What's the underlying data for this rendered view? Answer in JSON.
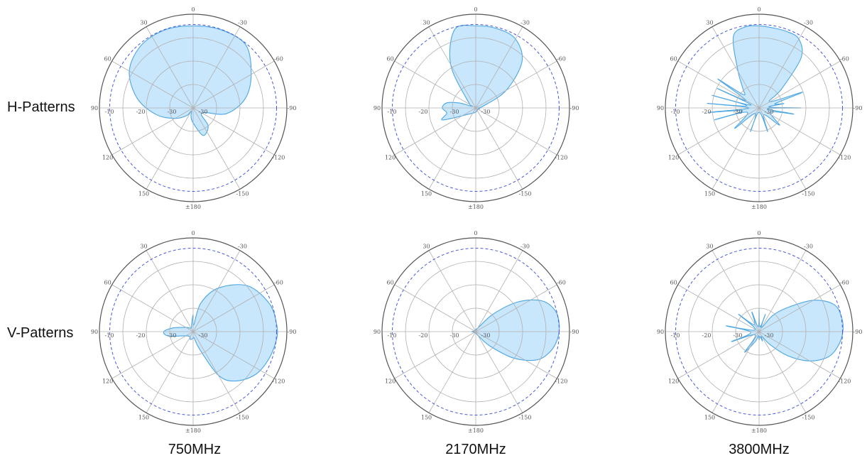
{
  "row_labels": {
    "h": "H-Patterns",
    "v": "V-Patterns"
  },
  "column_labels": [
    "750MHz",
    "2170MHz",
    "3800MHz"
  ],
  "colors": {
    "lobe_fill": "#bfe3fb",
    "lobe_stroke": "#4aa6e3",
    "grid": "#b0b0b0",
    "outer_ring": "#555555",
    "reference_ring": "#4a5ad8"
  },
  "chart_data": [
    {
      "type": "polar",
      "id": "h-750",
      "row": "H-Patterns",
      "column": "750MHz",
      "angular_ticks": [
        "0",
        "-30",
        "-60",
        "-90",
        "-120",
        "-150",
        "±180",
        "150",
        "120",
        "90",
        "60",
        "30"
      ],
      "radial_ticks": [
        "-10",
        "-20",
        "-30"
      ],
      "reference_level": 1.05,
      "pattern": {
        "angles": [
          0,
          20,
          40,
          60,
          80,
          100,
          120,
          140,
          160,
          180,
          195,
          210,
          220,
          240,
          260,
          280,
          300,
          320,
          340
        ],
        "radii": [
          0.98,
          0.99,
          0.98,
          0.8,
          0.63,
          0.4,
          0.12,
          0.28,
          0.35,
          0.18,
          0.1,
          0.04,
          0.12,
          0.25,
          0.45,
          0.68,
          0.88,
          0.97,
          0.99
        ]
      }
    },
    {
      "type": "polar",
      "id": "h-2170",
      "row": "H-Patterns",
      "column": "2170MHz",
      "angular_ticks": [
        "0",
        "-30",
        "-60",
        "-90",
        "-120",
        "-150",
        "±180",
        "150",
        "120",
        "90",
        "60",
        "30"
      ],
      "radial_ticks": [
        "-10",
        "-20",
        "-30"
      ],
      "reference_level": 1.05,
      "pattern": {
        "angles": [
          0,
          15,
          30,
          45,
          60,
          75,
          90,
          100,
          120,
          180,
          225,
          250,
          260,
          270,
          280,
          287,
          295,
          310,
          330,
          345
        ],
        "radii": [
          0.98,
          0.98,
          0.95,
          0.78,
          0.42,
          0.1,
          0.03,
          0.05,
          0.03,
          0.05,
          0.1,
          0.42,
          0.35,
          0.4,
          0.35,
          0.2,
          0.05,
          0.12,
          0.6,
          0.97
        ]
      }
    },
    {
      "type": "polar",
      "id": "h-3800",
      "row": "H-Patterns",
      "column": "3800MHz",
      "angular_ticks": [
        "0",
        "-30",
        "-60",
        "-90",
        "-120",
        "-150",
        "±180",
        "150",
        "120",
        "90",
        "60",
        "30"
      ],
      "radial_ticks": [
        "-10",
        "-20",
        "-30"
      ],
      "reference_level": 1.05,
      "pattern": {
        "angles": [
          0,
          10,
          20,
          30,
          40,
          50,
          60,
          70,
          75,
          80,
          85,
          90,
          95,
          100,
          110,
          130,
          145,
          160,
          180,
          200,
          215,
          230,
          250,
          255,
          260,
          265,
          270,
          275,
          280,
          285,
          290,
          295,
          300,
          305,
          310,
          320,
          330,
          340,
          350
        ],
        "radii": [
          0.98,
          0.97,
          0.97,
          0.95,
          0.78,
          0.35,
          0.15,
          0.55,
          0.2,
          0.3,
          0.12,
          0.5,
          0.1,
          0.42,
          0.15,
          0.32,
          0.1,
          0.3,
          0.05,
          0.3,
          0.08,
          0.38,
          0.15,
          0.55,
          0.2,
          0.6,
          0.12,
          0.62,
          0.15,
          0.58,
          0.1,
          0.55,
          0.18,
          0.6,
          0.25,
          0.3,
          0.5,
          0.9,
          0.98
        ]
      }
    },
    {
      "type": "polar",
      "id": "v-750",
      "row": "V-Patterns",
      "column": "750MHz",
      "angular_ticks": [
        "0",
        "-30",
        "-60",
        "-90",
        "-120",
        "-150",
        "±180",
        "150",
        "120",
        "90",
        "60",
        "30"
      ],
      "radial_ticks": [
        "-10",
        "-20",
        "-30"
      ],
      "reference_level": 1.05,
      "pattern": {
        "angles": [
          0,
          5,
          15,
          30,
          50,
          70,
          85,
          95,
          110,
          125,
          140,
          150,
          160,
          170,
          180,
          200,
          230,
          260,
          270,
          280,
          300,
          330,
          350
        ],
        "radii": [
          0.2,
          0.08,
          0.35,
          0.6,
          0.85,
          0.97,
          1.0,
          1.0,
          0.96,
          0.9,
          0.77,
          0.6,
          0.22,
          0.08,
          0.08,
          0.1,
          0.08,
          0.3,
          0.35,
          0.25,
          0.1,
          0.05,
          0.1
        ]
      }
    },
    {
      "type": "polar",
      "id": "v-2170",
      "row": "V-Patterns",
      "column": "2170MHz",
      "angular_ticks": [
        "0",
        "-30",
        "-60",
        "-90",
        "-120",
        "-150",
        "±180",
        "150",
        "120",
        "90",
        "60",
        "30"
      ],
      "radial_ticks": [
        "-10",
        "-20",
        "-30"
      ],
      "reference_level": 1.05,
      "pattern": {
        "angles": [
          0,
          30,
          45,
          55,
          65,
          75,
          85,
          95,
          105,
          115,
          125,
          135,
          145,
          160,
          180,
          260,
          270,
          280,
          300,
          340
        ],
        "radii": [
          0.03,
          0.05,
          0.3,
          0.62,
          0.87,
          0.98,
          1.0,
          0.98,
          0.92,
          0.8,
          0.55,
          0.25,
          0.08,
          0.03,
          0.02,
          0.03,
          0.05,
          0.03,
          0.02,
          0.02
        ]
      }
    },
    {
      "type": "polar",
      "id": "v-3800",
      "row": "V-Patterns",
      "column": "3800MHz",
      "angular_ticks": [
        "0",
        "-30",
        "-60",
        "-90",
        "-120",
        "-150",
        "±180",
        "150",
        "120",
        "90",
        "60",
        "30"
      ],
      "radial_ticks": [
        "-10",
        "-20",
        "-30"
      ],
      "reference_level": 1.05,
      "pattern": {
        "angles": [
          0,
          10,
          20,
          30,
          40,
          50,
          60,
          70,
          80,
          90,
          100,
          110,
          120,
          130,
          140,
          150,
          160,
          170,
          180,
          190,
          200,
          215,
          230,
          250,
          265,
          280,
          295,
          310,
          325,
          340,
          350
        ],
        "radii": [
          0.28,
          0.06,
          0.22,
          0.05,
          0.25,
          0.45,
          0.75,
          0.95,
          1.0,
          1.0,
          0.96,
          0.88,
          0.7,
          0.45,
          0.2,
          0.06,
          0.12,
          0.06,
          0.1,
          0.05,
          0.12,
          0.3,
          0.06,
          0.35,
          0.1,
          0.4,
          0.05,
          0.32,
          0.1,
          0.25,
          0.06
        ]
      }
    }
  ]
}
